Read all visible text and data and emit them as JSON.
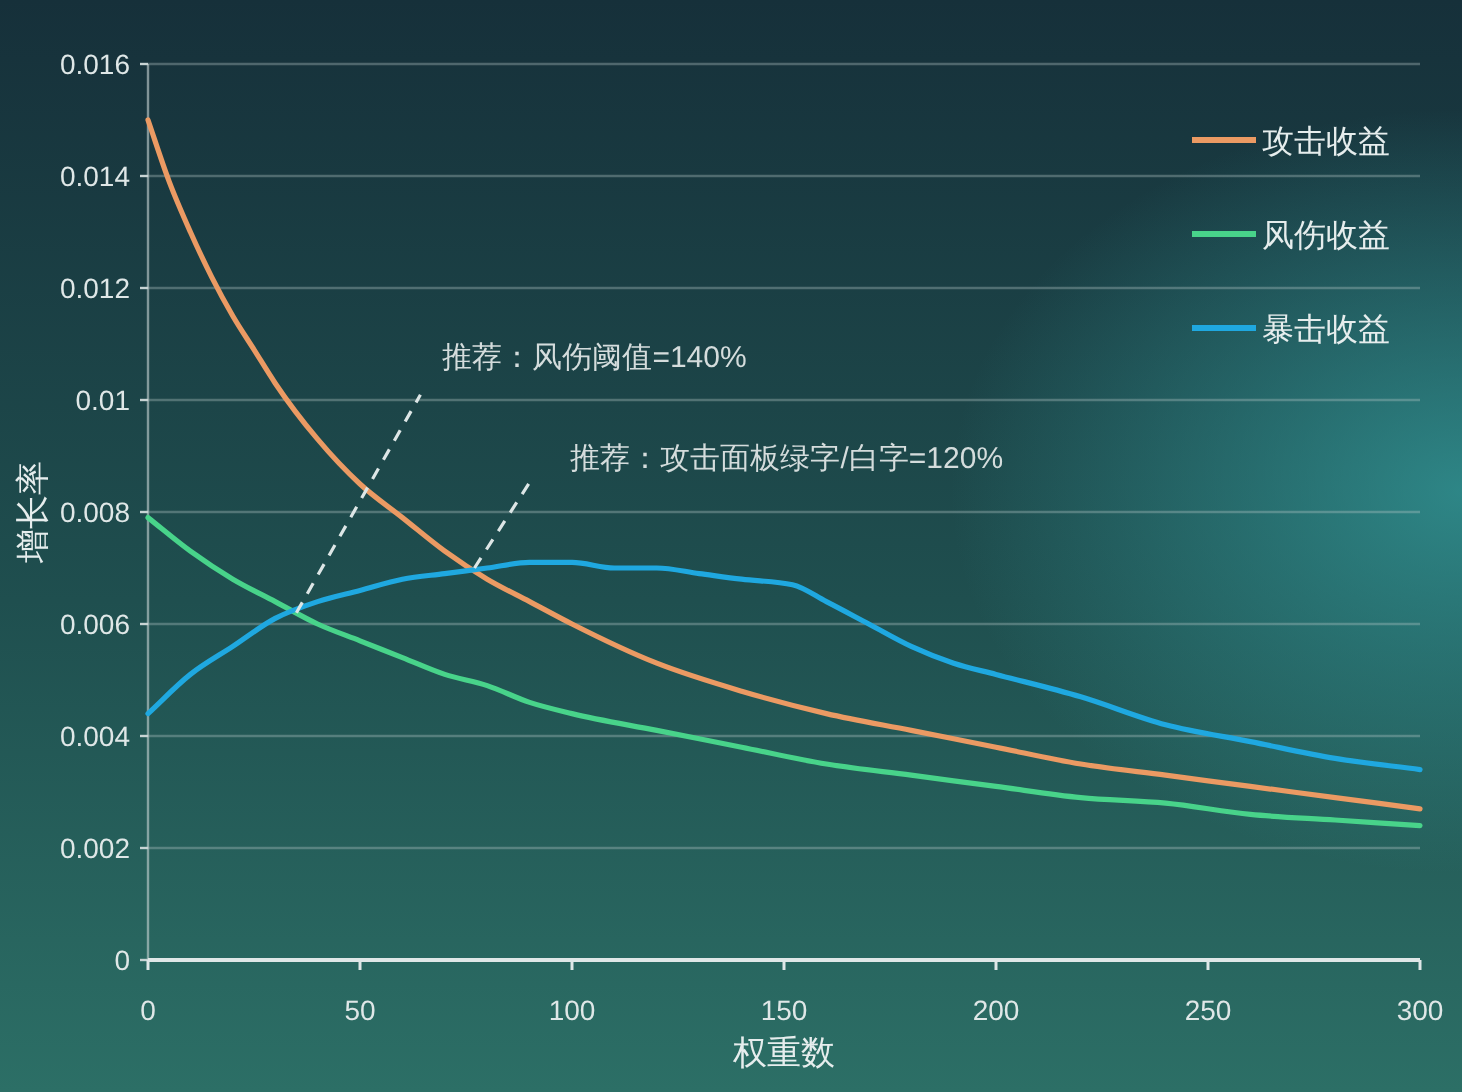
{
  "chart_data": {
    "type": "line",
    "xlabel": "权重数",
    "ylabel": "增长率",
    "xlim": [
      0,
      300
    ],
    "xticks": [
      0,
      50,
      100,
      150,
      200,
      250,
      300
    ],
    "ylim": [
      0,
      0.016
    ],
    "yticks": [
      0,
      0.002,
      0.004,
      0.006,
      0.008,
      0.01,
      0.012,
      0.014,
      0.016
    ],
    "grid": "y",
    "legend": "top right",
    "series": [
      {
        "name": "攻击收益",
        "color": "#eb9a63",
        "x": [
          0,
          5,
          10,
          15,
          20,
          25,
          30,
          40,
          50,
          60,
          70,
          80,
          90,
          100,
          120,
          140,
          160,
          180,
          200,
          220,
          240,
          260,
          280,
          300
        ],
        "values": [
          0.015,
          0.0139,
          0.013,
          0.0122,
          0.0115,
          0.0109,
          0.0103,
          0.0093,
          0.0085,
          0.0079,
          0.0073,
          0.0068,
          0.0064,
          0.006,
          0.0053,
          0.0048,
          0.0044,
          0.0041,
          0.0038,
          0.0035,
          0.0033,
          0.0031,
          0.0029,
          0.0027
        ]
      },
      {
        "name": "风伤收益",
        "color": "#48d38a",
        "x": [
          0,
          10,
          20,
          30,
          40,
          50,
          60,
          70,
          80,
          90,
          100,
          120,
          140,
          160,
          180,
          200,
          220,
          240,
          260,
          280,
          300
        ],
        "values": [
          0.0079,
          0.0073,
          0.0068,
          0.0064,
          0.006,
          0.0057,
          0.0054,
          0.0051,
          0.0049,
          0.0046,
          0.0044,
          0.0041,
          0.0038,
          0.0035,
          0.0033,
          0.0031,
          0.0029,
          0.0028,
          0.0026,
          0.0025,
          0.0024
        ]
      },
      {
        "name": "暴击收益",
        "color": "#1fa8e0",
        "x": [
          0,
          10,
          20,
          30,
          40,
          50,
          60,
          70,
          80,
          90,
          100,
          110,
          120,
          130,
          140,
          152,
          160,
          170,
          180,
          190,
          200,
          220,
          240,
          260,
          280,
          300
        ],
        "values": [
          0.0044,
          0.0051,
          0.0056,
          0.0061,
          0.0064,
          0.0066,
          0.0068,
          0.0069,
          0.007,
          0.0071,
          0.0071,
          0.007,
          0.007,
          0.0069,
          0.0068,
          0.0067,
          0.0064,
          0.006,
          0.0056,
          0.0053,
          0.0051,
          0.0047,
          0.0042,
          0.0039,
          0.0036,
          0.0034
        ]
      }
    ],
    "annotations": [
      {
        "text": "推荐：风伤阈值=140%",
        "x": 35,
        "y": 0.0062
      },
      {
        "text": "推荐：攻击面板绿字/白字=120%",
        "x": 77,
        "y": 0.007
      }
    ]
  }
}
